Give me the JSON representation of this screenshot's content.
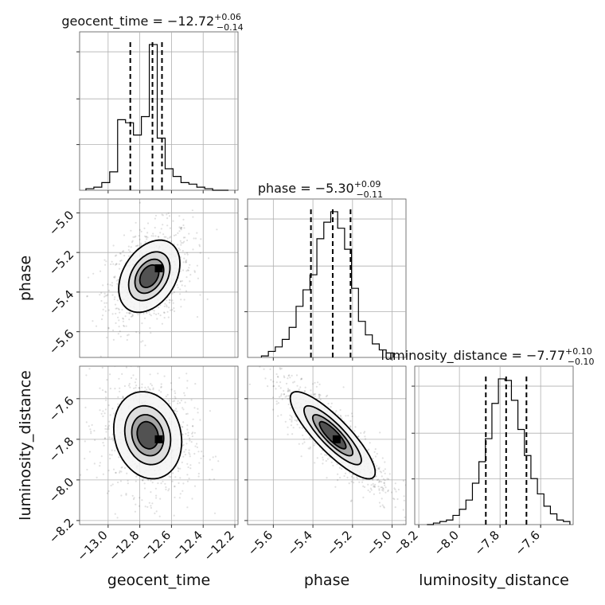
{
  "chart_data": {
    "type": "corner",
    "parameters": [
      "geocent_time",
      "phase",
      "luminosity_distance"
    ],
    "ranges": {
      "geocent_time": [
        -13.18,
        -12.18
      ],
      "phase": [
        -5.73,
        -4.93
      ],
      "luminosity_distance": [
        -8.22,
        -7.44
      ]
    },
    "ticks": {
      "geocent_time": [
        -13.0,
        -12.8,
        -12.6,
        -12.4,
        -12.2
      ],
      "phase": [
        -5.6,
        -5.4,
        -5.2,
        -5.0
      ],
      "luminosity_distance": [
        -8.2,
        -8.0,
        -7.8,
        -7.6
      ]
    },
    "tick_labels": {
      "geocent_time": [
        "−13.0",
        "−12.8",
        "−12.6",
        "−12.4",
        "−12.2"
      ],
      "phase": [
        "−5.6",
        "−5.4",
        "−5.2",
        "−5.0"
      ],
      "luminosity_distance": [
        "−8.2",
        "−8.0",
        "−7.8",
        "−7.6"
      ]
    },
    "axis_labels": {
      "geocent_time": "geocent_time",
      "phase": "phase",
      "luminosity_distance": "luminosity_distance"
    },
    "titles": [
      {
        "param": "geocent_time",
        "main": "geocent_time = −12.72",
        "sup": "+0.06",
        "sub": "−0.14"
      },
      {
        "param": "phase",
        "main": "phase = −5.30",
        "sup": "+0.09",
        "sub": "−0.11"
      },
      {
        "param": "luminosity_distance",
        "main": "luminosity_distance = −7.77",
        "sup": "+0.10",
        "sub": "−0.10"
      }
    ],
    "quantiles": {
      "geocent_time": [
        -12.86,
        -12.72,
        -12.66
      ],
      "phase": [
        -5.41,
        -5.3,
        -5.21
      ],
      "luminosity_distance": [
        -7.87,
        -7.77,
        -7.67
      ]
    },
    "histograms": {
      "geocent_time": {
        "edges": [
          -13.14,
          -13.09,
          -13.04,
          -12.99,
          -12.94,
          -12.89,
          -12.84,
          -12.79,
          -12.74,
          -12.69,
          -12.64,
          -12.59,
          -12.54,
          -12.49,
          -12.44,
          -12.39,
          -12.34,
          -12.29,
          -12.24
        ],
        "counts": [
          0.01,
          0.02,
          0.05,
          0.12,
          0.46,
          0.44,
          0.36,
          0.48,
          0.95,
          0.34,
          0.14,
          0.09,
          0.05,
          0.04,
          0.02,
          0.01,
          0.0,
          0.0
        ]
      },
      "phase": {
        "edges": [
          -5.66,
          -5.625,
          -5.59,
          -5.555,
          -5.52,
          -5.485,
          -5.45,
          -5.415,
          -5.38,
          -5.345,
          -5.31,
          -5.275,
          -5.24,
          -5.205,
          -5.17,
          -5.135,
          -5.1,
          -5.065,
          -5.03,
          -4.995
        ],
        "counts": [
          0.01,
          0.04,
          0.07,
          0.12,
          0.2,
          0.34,
          0.45,
          0.55,
          0.79,
          0.9,
          0.97,
          0.86,
          0.72,
          0.46,
          0.24,
          0.15,
          0.09,
          0.05,
          0.03
        ]
      },
      "luminosity_distance": {
        "edges": [
          -8.16,
          -8.128,
          -8.096,
          -8.064,
          -8.032,
          -8.0,
          -7.968,
          -7.936,
          -7.904,
          -7.872,
          -7.84,
          -7.808,
          -7.776,
          -7.744,
          -7.712,
          -7.68,
          -7.648,
          -7.616,
          -7.584,
          -7.552,
          -7.52,
          -7.488,
          -7.456
        ],
        "counts": [
          0.0,
          0.01,
          0.02,
          0.03,
          0.06,
          0.1,
          0.16,
          0.27,
          0.41,
          0.56,
          0.79,
          0.95,
          0.94,
          0.81,
          0.62,
          0.45,
          0.3,
          0.2,
          0.12,
          0.07,
          0.03,
          0.02
        ]
      }
    },
    "pairs": [
      {
        "x": "geocent_time",
        "y": "phase",
        "mean": [
          -12.74,
          -5.32
        ],
        "sd": [
          0.09,
          0.085
        ],
        "corr": 0.35,
        "contour_levels": [
          0.12,
          0.22,
          0.35,
          0.55
        ],
        "peak": [
          -12.68,
          -5.28
        ]
      },
      {
        "x": "geocent_time",
        "y": "luminosity_distance",
        "mean": [
          -12.75,
          -7.78
        ],
        "sd": [
          0.1,
          0.1
        ],
        "corr": -0.15,
        "contour_levels": [
          0.12,
          0.22,
          0.35,
          0.55
        ],
        "peak": [
          -12.68,
          -7.8
        ]
      },
      {
        "x": "phase",
        "y": "luminosity_distance",
        "mean": [
          -5.3,
          -7.78
        ],
        "sd": [
          0.1,
          0.1
        ],
        "corr": -0.85,
        "contour_levels": [
          0.12,
          0.22,
          0.35,
          0.55
        ],
        "peak": [
          -5.28,
          -7.8
        ]
      }
    ],
    "grid": true
  }
}
